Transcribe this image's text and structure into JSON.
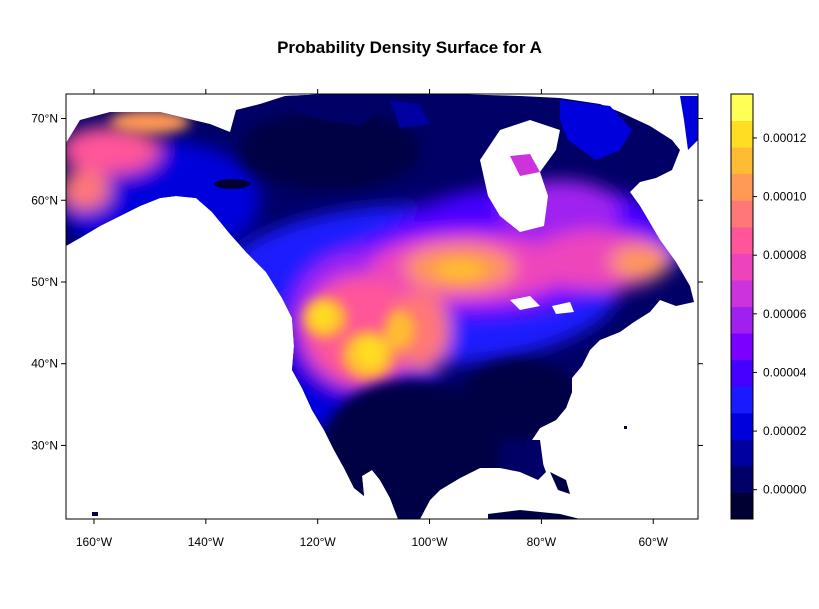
{
  "title": "Probability Density Surface for A",
  "map": {
    "x_ticks": [
      "160°W",
      "140°W",
      "120°W",
      "100°W",
      "80°W",
      "60°W"
    ],
    "y_ticks": [
      "70°N",
      "60°N",
      "50°N",
      "40°N",
      "30°N"
    ],
    "lon_range": [
      -165,
      -52
    ],
    "lat_range": [
      21,
      73
    ],
    "lon_tick_values": [
      -160,
      -140,
      -120,
      -100,
      -80,
      -60
    ],
    "lat_tick_values": [
      70,
      60,
      50,
      40,
      30
    ]
  },
  "colorbar": {
    "labels": [
      "0.00012",
      "0.00010",
      "0.00008",
      "0.00006",
      "0.00004",
      "0.00002",
      "0.00000"
    ],
    "label_values": [
      0.00012,
      0.0001,
      8e-05,
      6e-05,
      4e-05,
      2e-05,
      0.0
    ],
    "range": [
      -1e-05,
      0.000135
    ],
    "colors": [
      "#000033",
      "#000066",
      "#0000a0",
      "#0000dd",
      "#1a1aff",
      "#4400ff",
      "#7a00ff",
      "#a020f0",
      "#cc33dd",
      "#ee44bb",
      "#ff5599",
      "#ff7777",
      "#ff9955",
      "#ffbb33",
      "#ffdd22",
      "#ffff55"
    ]
  }
}
